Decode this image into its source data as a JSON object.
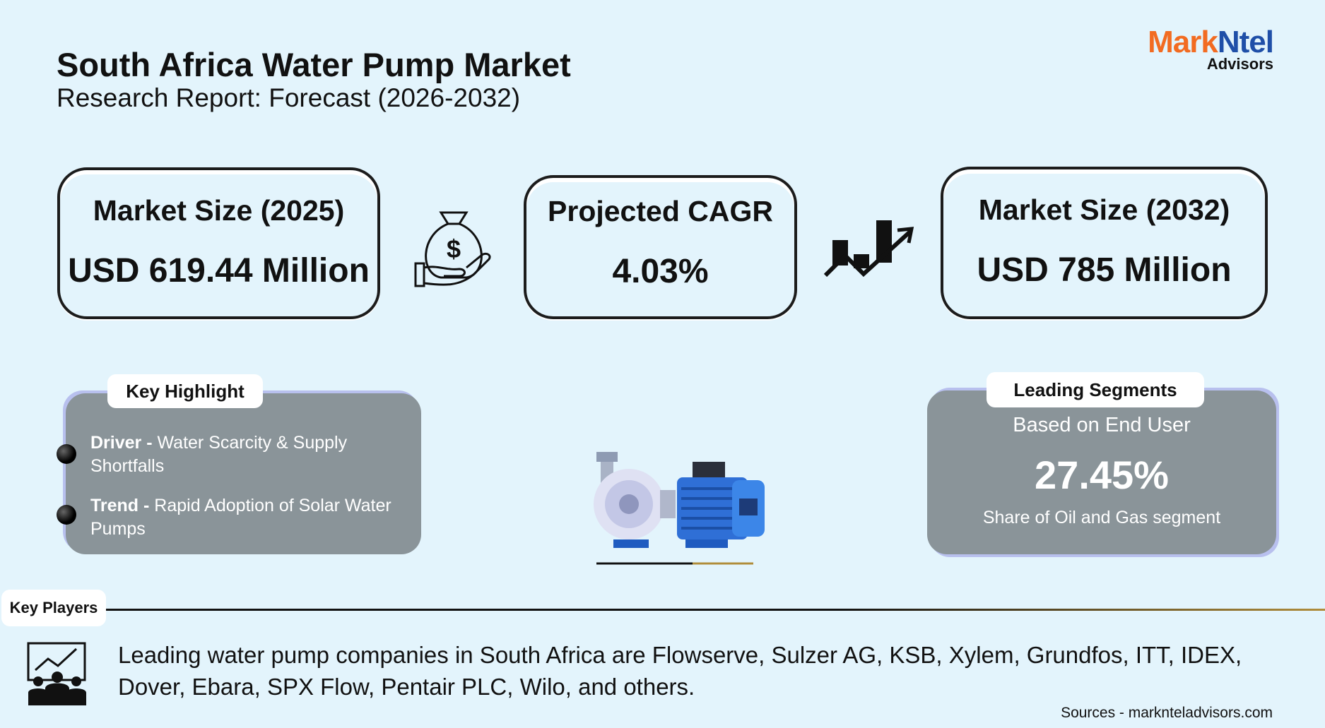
{
  "header": {
    "title": "South Africa Water Pump Market",
    "subtitle": "Research Report: Forecast (2026-2032)"
  },
  "logo": {
    "parts": [
      "Mark",
      "Ntel"
    ],
    "sub": "Advisors"
  },
  "stats": [
    {
      "label": "Market Size (2025)",
      "value": "USD 619.44 Million"
    },
    {
      "label": "Projected CAGR",
      "value": "4.03%"
    },
    {
      "label": "Market Size (2032)",
      "value": "USD 785 Million"
    }
  ],
  "key_highlight": {
    "title": "Key Highlight",
    "items": [
      {
        "label": "Driver -",
        "text": "Water Scarcity & Supply Shortfalls"
      },
      {
        "label": "Trend -",
        "text": "Rapid Adoption of Solar Water Pumps"
      }
    ]
  },
  "leading_segments": {
    "title": "Leading Segments",
    "basis": "Based on End User",
    "value": "27.45%",
    "caption": "Share of Oil and Gas segment"
  },
  "key_players": {
    "title": "Key Players",
    "text": "Leading water pump companies in South Africa are Flowserve, Sulzer AG, KSB, Xylem, Grundfos, ITT, IDEX, Dover, Ebara, SPX Flow, Pentair PLC, Wilo, and others."
  },
  "source": "Sources - marknteladvisors.com"
}
